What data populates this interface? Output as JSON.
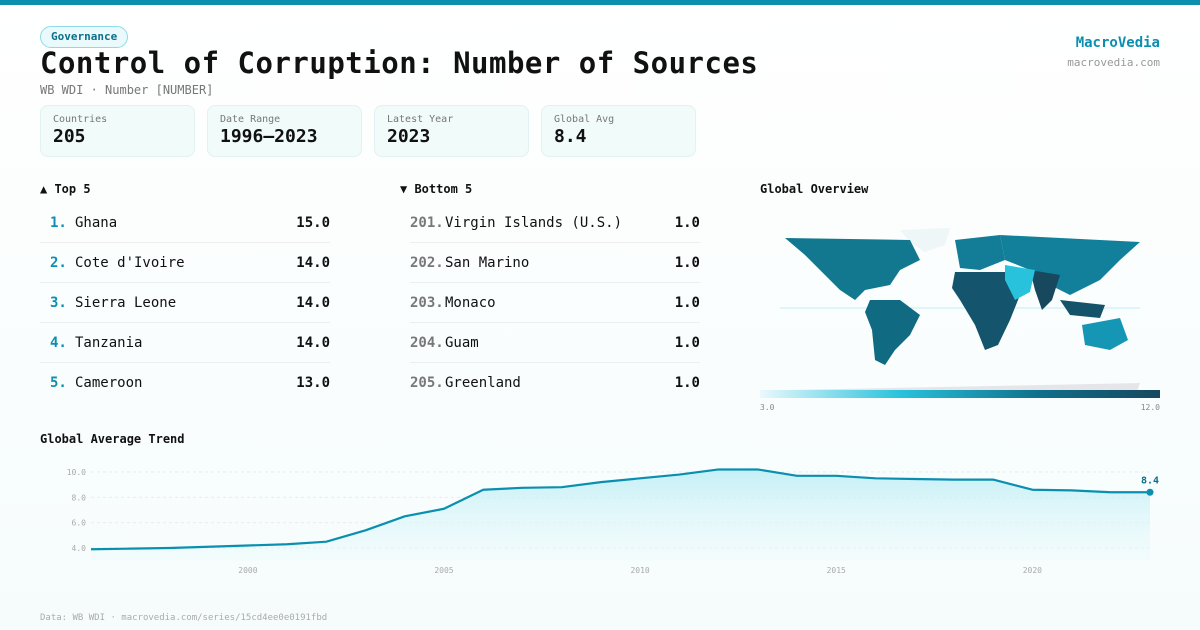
{
  "header": {
    "tag": "Governance",
    "title": "Control of Corruption: Number of Sources",
    "subtitle": "WB WDI · Number [NUMBER]",
    "brand": "MacroVedia",
    "brand_url": "macrovedia.com"
  },
  "stats": [
    {
      "label": "Countries",
      "value": "205"
    },
    {
      "label": "Date Range",
      "value": "1996–2023"
    },
    {
      "label": "Latest Year",
      "value": "2023"
    },
    {
      "label": "Global Avg",
      "value": "8.4"
    }
  ],
  "top5": {
    "title": "▲ Top 5",
    "items": [
      {
        "rank": "1.",
        "name": "Ghana",
        "value": "15.0"
      },
      {
        "rank": "2.",
        "name": "Cote d'Ivoire",
        "value": "14.0"
      },
      {
        "rank": "3.",
        "name": "Sierra Leone",
        "value": "14.0"
      },
      {
        "rank": "4.",
        "name": "Tanzania",
        "value": "14.0"
      },
      {
        "rank": "5.",
        "name": "Cameroon",
        "value": "13.0"
      }
    ]
  },
  "bottom5": {
    "title": "▼ Bottom 5",
    "items": [
      {
        "rank": "201.",
        "name": "Virgin Islands (U.S.)",
        "value": "1.0"
      },
      {
        "rank": "202.",
        "name": "San Marino",
        "value": "1.0"
      },
      {
        "rank": "203.",
        "name": "Monaco",
        "value": "1.0"
      },
      {
        "rank": "204.",
        "name": "Guam",
        "value": "1.0"
      },
      {
        "rank": "205.",
        "name": "Greenland",
        "value": "1.0"
      }
    ]
  },
  "map": {
    "title": "Global Overview",
    "legend_min": "3.0",
    "legend_max": "12.0",
    "colors": [
      "#eaf9fc",
      "#29c2dc",
      "#0f6f8a",
      "#17485e"
    ]
  },
  "footer": "Data: WB WDI · macrovedia.com/series/15cd4ee0e0191fbd",
  "chart_data": {
    "type": "area",
    "title": "Global Average Trend",
    "x": [
      1996,
      1997,
      1998,
      1999,
      2000,
      2001,
      2002,
      2003,
      2004,
      2005,
      2006,
      2007,
      2008,
      2009,
      2010,
      2011,
      2012,
      2013,
      2014,
      2015,
      2016,
      2017,
      2018,
      2019,
      2020,
      2021,
      2022,
      2023
    ],
    "values": [
      3.9,
      3.95,
      4.0,
      4.1,
      4.2,
      4.3,
      4.5,
      5.4,
      6.5,
      7.1,
      8.6,
      8.75,
      8.8,
      9.2,
      9.5,
      9.8,
      10.2,
      10.2,
      9.7,
      9.7,
      9.5,
      9.45,
      9.4,
      9.4,
      8.6,
      8.55,
      8.4,
      8.4
    ],
    "yticks": [
      "4.0",
      "6.0",
      "8.0",
      "10.0"
    ],
    "xticks": [
      "2000",
      "2005",
      "2010",
      "2015",
      "2020"
    ],
    "ylim": [
      3.0,
      10.7
    ],
    "last_label": "8.4",
    "color": "#0b8fb0"
  }
}
